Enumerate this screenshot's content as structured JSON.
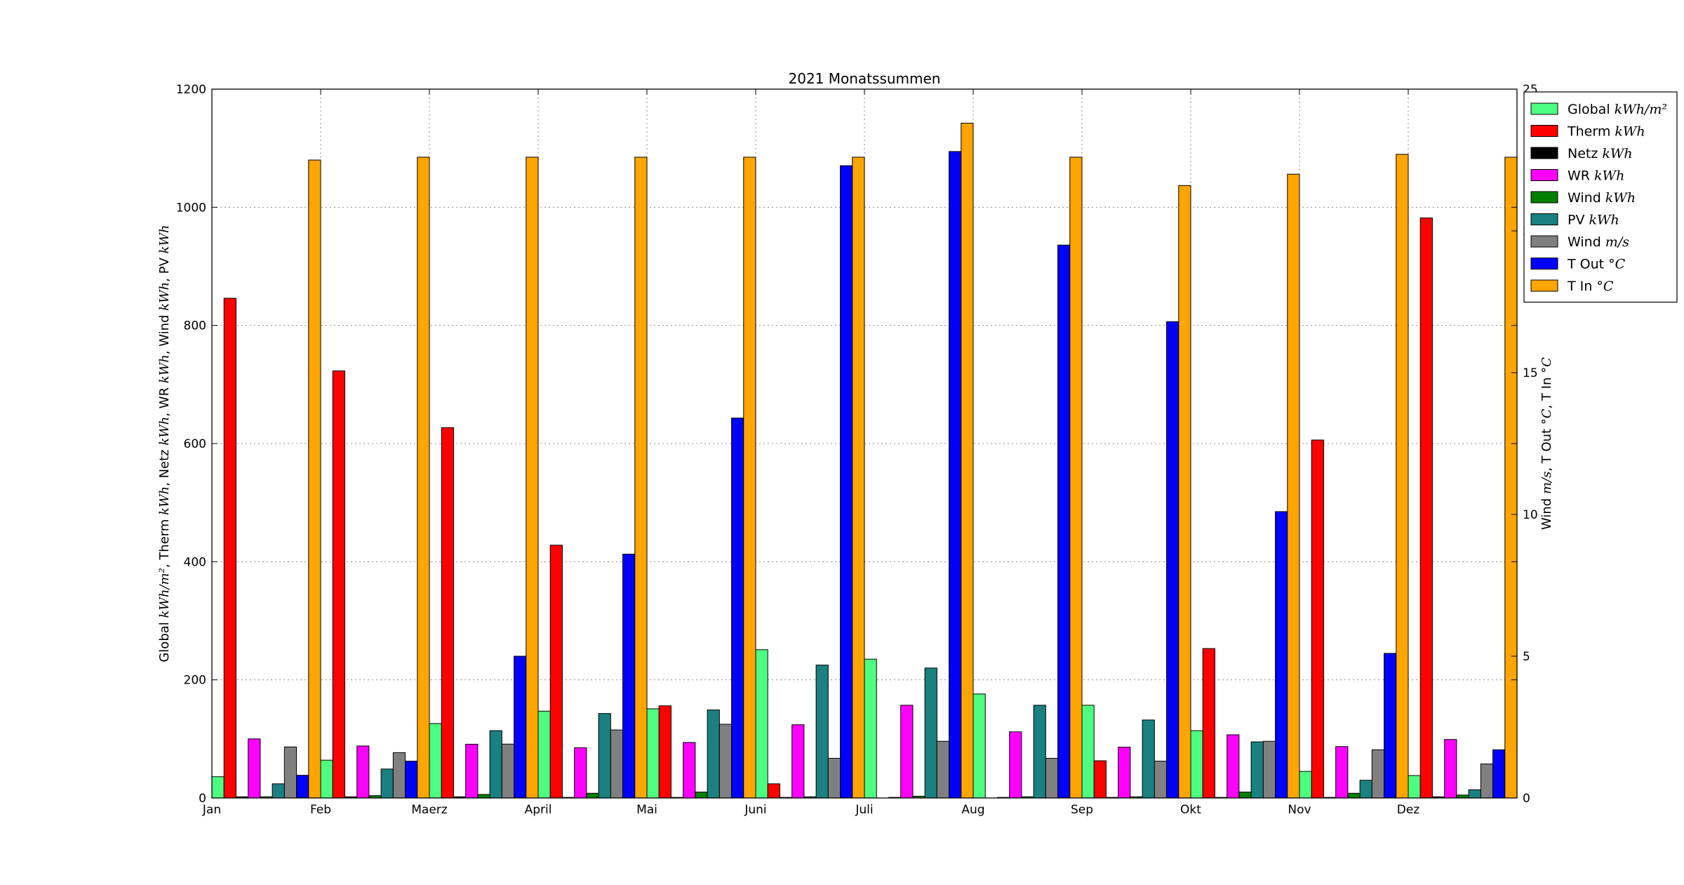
{
  "chart_data": {
    "type": "bar",
    "title": "2021 Monatssummen",
    "categories": [
      "Jan",
      "Feb",
      "Maerz",
      "April",
      "Mai",
      "Juni",
      "Juli",
      "Aug",
      "Sep",
      "Okt",
      "Nov",
      "Dez"
    ],
    "ylabel": {
      "parts": [
        {
          "text": "Global ",
          "unit": false
        },
        {
          "text": "kWh/m²",
          "unit": true
        },
        {
          "text": ", Therm ",
          "unit": false
        },
        {
          "text": "kWh",
          "unit": true
        },
        {
          "text": ", Netz ",
          "unit": false
        },
        {
          "text": "kWh",
          "unit": true
        },
        {
          "text": ", WR ",
          "unit": false
        },
        {
          "text": "kWh",
          "unit": true
        },
        {
          "text": ", Wind ",
          "unit": false
        },
        {
          "text": "kWh",
          "unit": true
        },
        {
          "text": ", PV ",
          "unit": false
        },
        {
          "text": "kWh",
          "unit": true
        }
      ]
    },
    "y2label": {
      "parts": [
        {
          "text": "Wind ",
          "unit": false
        },
        {
          "text": "m/s",
          "unit": true
        },
        {
          "text": ", T Out ",
          "unit": false
        },
        {
          "text": "°C",
          "unit": true
        },
        {
          "text": ", T In ",
          "unit": false
        },
        {
          "text": "°C",
          "unit": true
        }
      ]
    },
    "ylim": [
      0,
      1200
    ],
    "y2lim": [
      0,
      25
    ],
    "yticks": [
      0,
      200,
      400,
      600,
      800,
      1000,
      1200
    ],
    "y2ticks": [
      0,
      5,
      10,
      15,
      20,
      25
    ],
    "grid": true,
    "legend_position": "upper-right-outside",
    "series": [
      {
        "name": "Global",
        "unit": "kWh/m²",
        "axis": "left",
        "color": "#4dff80",
        "values": [
          36,
          64,
          126,
          147,
          151,
          251,
          235,
          176,
          157,
          114,
          45,
          38
        ]
      },
      {
        "name": "Therm",
        "unit": "kWh",
        "axis": "left",
        "color": "#ff0000",
        "values": [
          846,
          723,
          627,
          428,
          156,
          24,
          0,
          0,
          63,
          253,
          606,
          982
        ]
      },
      {
        "name": "Netz",
        "unit": "kWh",
        "axis": "left",
        "color": "#000000",
        "values": [
          2,
          2,
          2,
          1,
          1,
          1,
          1,
          1,
          1,
          1,
          1,
          2
        ]
      },
      {
        "name": "WR",
        "unit": "kWh",
        "axis": "left",
        "color": "#ff00ff",
        "values": [
          100,
          88,
          91,
          85,
          94,
          124,
          157,
          112,
          86,
          107,
          87,
          99
        ]
      },
      {
        "name": "Wind",
        "unit": "kWh",
        "axis": "left",
        "color": "#008000",
        "values": [
          2,
          4,
          6,
          8,
          10,
          2,
          3,
          2,
          2,
          10,
          8,
          5
        ]
      },
      {
        "name": "PV",
        "unit": "kWh",
        "axis": "left",
        "color": "#1a8080",
        "values": [
          24,
          49,
          114,
          143,
          149,
          225,
          220,
          157,
          132,
          95,
          30,
          14
        ]
      },
      {
        "name": "Wind",
        "unit": "m/s",
        "axis": "right",
        "color": "#808080",
        "values": [
          1.8,
          1.6,
          1.9,
          2.4,
          2.6,
          1.4,
          2.0,
          1.4,
          1.3,
          2.0,
          1.7,
          1.2
        ]
      },
      {
        "name": "T Out",
        "unit": "°C",
        "axis": "right",
        "color": "#0000ff",
        "values": [
          0.8,
          1.3,
          5.0,
          8.6,
          13.4,
          22.3,
          22.8,
          19.5,
          16.8,
          10.1,
          5.1,
          1.7
        ]
      },
      {
        "name": "T In",
        "unit": "°C",
        "axis": "right",
        "color": "#ffa500",
        "values": [
          22.5,
          22.6,
          22.6,
          22.6,
          22.6,
          22.6,
          23.8,
          22.6,
          21.6,
          22.0,
          22.7,
          22.6
        ]
      }
    ]
  }
}
